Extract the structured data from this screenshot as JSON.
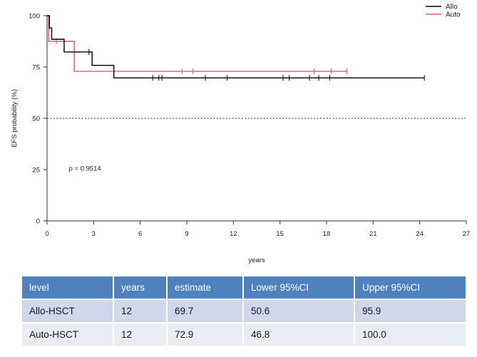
{
  "chart_data": {
    "type": "line",
    "subtype": "kaplan-meier survival curve",
    "ylabel": "EFS probability (%)",
    "xlabel": "years",
    "xlim": [
      0,
      27
    ],
    "ylim": [
      0,
      100
    ],
    "xticks": [
      0,
      3,
      6,
      9,
      12,
      15,
      18,
      21,
      24,
      27
    ],
    "yticks": [
      0,
      25,
      50,
      75,
      100
    ],
    "reference_line": {
      "y": 50,
      "style": "dotted"
    },
    "annotation": "p = 0.9514",
    "legend_position": "top-right",
    "grid": false,
    "series": [
      {
        "name": "Allo",
        "color": "#000000",
        "steps": [
          [
            0,
            100
          ],
          [
            0.15,
            94
          ],
          [
            0.3,
            88.5
          ],
          [
            1.1,
            82.3
          ],
          [
            2.9,
            75.8
          ],
          [
            4.3,
            69.7
          ],
          [
            24.3,
            69.7
          ]
        ],
        "censored": [
          [
            2.7,
            82.3
          ],
          [
            6.8,
            69.7
          ],
          [
            7.2,
            69.7
          ],
          [
            7.4,
            69.7
          ],
          [
            10.2,
            69.7
          ],
          [
            11.6,
            69.7
          ],
          [
            15.2,
            69.7
          ],
          [
            15.6,
            69.7
          ],
          [
            16.9,
            69.7
          ],
          [
            17.5,
            69.7
          ],
          [
            18.2,
            69.7
          ],
          [
            24.3,
            69.7
          ]
        ]
      },
      {
        "name": "Auto",
        "color": "#e05a70",
        "steps": [
          [
            0,
            100
          ],
          [
            0.1,
            87.5
          ],
          [
            1.75,
            72.9
          ],
          [
            19.3,
            72.9
          ]
        ],
        "censored": [
          [
            0.6,
            87.5
          ],
          [
            8.7,
            72.9
          ],
          [
            9.4,
            72.9
          ],
          [
            17.2,
            72.9
          ],
          [
            18.3,
            72.9
          ],
          [
            19.3,
            72.9
          ]
        ]
      }
    ]
  },
  "table": {
    "header_color": "#4f81bd",
    "row_colors": [
      "#cfd7e8",
      "#e9edf4"
    ],
    "headers": [
      "level",
      "years",
      "estimate",
      "Lower 95%CI",
      "Upper 95%CI"
    ],
    "rows": [
      [
        "Allo-HSCT",
        "12",
        "69.7",
        "50.6",
        "95.9"
      ],
      [
        "Auto-HSCT",
        "12",
        "72.9",
        "46.8",
        "100.0"
      ]
    ]
  }
}
